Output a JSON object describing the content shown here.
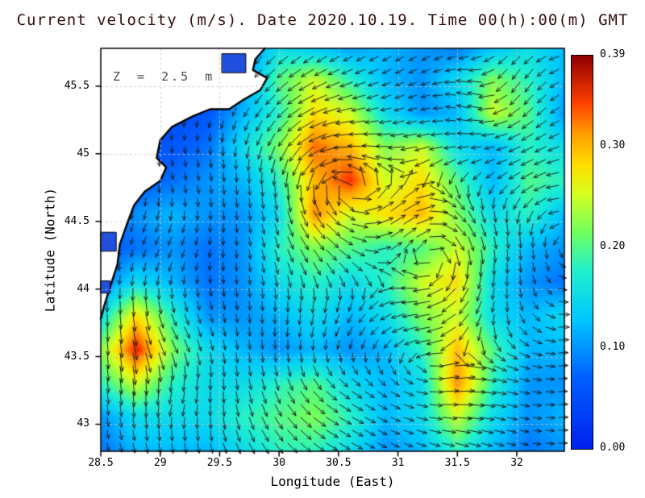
{
  "title": "Current velocity (m/s). Date 2020.10.19. Time 00(h):00(m) GMT",
  "annotation": "Z = 2.5 m",
  "colors": {
    "title": "#33100e",
    "annotation": "#4d4d4d",
    "text": "#000000",
    "coast": "#000000",
    "land": "#ffffff",
    "lake": "#2050dd",
    "arrow": "#101010",
    "gridline": "#c8c8c8"
  },
  "axes": {
    "xlabel": "Longitude (East)",
    "ylabel": "Latitude (North)",
    "xlim": [
      28.5,
      32.4
    ],
    "ylim": [
      42.8,
      45.78
    ],
    "x_ticks": [
      28.5,
      29,
      29.5,
      30,
      30.5,
      31,
      31.5,
      32
    ],
    "x_tick_labels": [
      "28.5",
      "29",
      "29.5",
      "30",
      "30.5",
      "31",
      "31.5",
      "32"
    ],
    "y_ticks": [
      43,
      43.5,
      44,
      44.5,
      45,
      45.5
    ],
    "y_tick_labels": [
      "43",
      "43.5",
      "44",
      "44.5",
      "45",
      "45.5"
    ]
  },
  "colorbar": {
    "min": 0.0,
    "max": 0.39,
    "tick_values": [
      0.0,
      0.1,
      0.2,
      0.3,
      0.39
    ],
    "tick_labels": [
      "0.00",
      "0.10",
      "0.20",
      "0.30",
      "0.39"
    ],
    "stops": [
      [
        0.0,
        "#0020ee"
      ],
      [
        0.18,
        "#0060ff"
      ],
      [
        0.33,
        "#00c8ff"
      ],
      [
        0.45,
        "#20f0d0"
      ],
      [
        0.55,
        "#70ff60"
      ],
      [
        0.65,
        "#d8ff20"
      ],
      [
        0.72,
        "#ffe000"
      ],
      [
        0.8,
        "#ffa000"
      ],
      [
        0.88,
        "#ff4000"
      ],
      [
        1.0,
        "#900000"
      ]
    ]
  },
  "chart_data": {
    "type": "heatmap",
    "overlay": "quiver",
    "units": "m/s",
    "title": "Current velocity (m/s). Date 2020.10.19. Time 00(h):00(m) GMT",
    "depth_m": 2.5,
    "lons": [
      28.5,
      28.8,
      29.1,
      29.4,
      29.7,
      30.0,
      30.3,
      30.6,
      30.9,
      31.2,
      31.5,
      31.8,
      32.1,
      32.4
    ],
    "lats": [
      42.8,
      43.05,
      43.3,
      43.55,
      43.8,
      44.05,
      44.3,
      44.55,
      44.8,
      45.05,
      45.3,
      45.55,
      45.8
    ],
    "speed": [
      [
        0.08,
        0.12,
        0.12,
        0.12,
        0.15,
        0.18,
        0.18,
        0.15,
        0.1,
        0.12,
        0.18,
        0.12,
        0.08,
        0.1
      ],
      [
        0.1,
        0.15,
        0.15,
        0.15,
        0.18,
        0.2,
        0.22,
        0.18,
        0.12,
        0.15,
        0.25,
        0.15,
        0.1,
        0.12
      ],
      [
        0.18,
        0.25,
        0.18,
        0.15,
        0.15,
        0.18,
        0.2,
        0.15,
        0.12,
        0.15,
        0.32,
        0.18,
        0.1,
        0.1
      ],
      [
        0.22,
        0.36,
        0.22,
        0.15,
        0.12,
        0.1,
        0.12,
        0.1,
        0.12,
        0.18,
        0.3,
        0.2,
        0.12,
        0.12
      ],
      [
        0.15,
        0.28,
        0.18,
        0.1,
        0.1,
        0.12,
        0.15,
        0.12,
        0.15,
        0.22,
        0.25,
        0.15,
        0.12,
        0.15
      ],
      [
        0.08,
        0.15,
        0.12,
        0.08,
        0.1,
        0.15,
        0.18,
        0.15,
        0.18,
        0.25,
        0.28,
        0.15,
        0.1,
        0.08
      ],
      [
        0.06,
        0.08,
        0.1,
        0.08,
        0.1,
        0.18,
        0.22,
        0.2,
        0.18,
        0.2,
        0.25,
        0.18,
        0.12,
        0.1
      ],
      [
        0.06,
        0.1,
        0.12,
        0.1,
        0.1,
        0.15,
        0.32,
        0.25,
        0.28,
        0.3,
        0.22,
        0.15,
        0.18,
        0.12
      ],
      [
        0.05,
        0.06,
        0.08,
        0.1,
        0.12,
        0.18,
        0.3,
        0.35,
        0.25,
        0.28,
        0.2,
        0.12,
        0.2,
        0.18
      ],
      [
        0.05,
        0.05,
        0.06,
        0.08,
        0.15,
        0.22,
        0.33,
        0.3,
        0.22,
        0.25,
        0.15,
        0.12,
        0.18,
        0.15
      ],
      [
        0.05,
        0.05,
        0.05,
        0.06,
        0.12,
        0.18,
        0.28,
        0.25,
        0.15,
        0.1,
        0.12,
        0.25,
        0.2,
        0.1
      ],
      [
        0.05,
        0.05,
        0.05,
        0.05,
        0.1,
        0.2,
        0.25,
        0.18,
        0.12,
        0.1,
        0.15,
        0.22,
        0.18,
        0.12
      ],
      [
        0.05,
        0.05,
        0.05,
        0.05,
        0.08,
        0.15,
        0.12,
        0.1,
        0.12,
        0.1,
        0.08,
        0.12,
        0.15,
        0.12
      ]
    ],
    "flow": {
      "background": [
        -0.03,
        -0.04
      ],
      "vortices": [
        {
          "lon": 32.2,
          "lat": 44.4,
          "r": 2.6,
          "s": 1.1
        },
        {
          "lon": 30.3,
          "lat": 43.45,
          "r": 0.55,
          "s": 0.9
        },
        {
          "lon": 30.25,
          "lat": 44.85,
          "r": 0.7,
          "s": 1.2
        },
        {
          "lon": 31.45,
          "lat": 44.25,
          "r": 0.5,
          "s": -0.85
        },
        {
          "lon": 31.9,
          "lat": 45.35,
          "r": 0.45,
          "s": -0.7
        },
        {
          "lon": 29.35,
          "lat": 43.5,
          "r": 0.45,
          "s": -0.35
        },
        {
          "lon": 31.05,
          "lat": 43.35,
          "r": 0.5,
          "s": 0.7
        },
        {
          "lon": 29.4,
          "lat": 44.6,
          "r": 0.5,
          "s": -0.5
        }
      ]
    },
    "map": {
      "land": [
        [
          29.88,
          45.78
        ],
        [
          29.8,
          45.7
        ],
        [
          29.78,
          45.62
        ],
        [
          29.9,
          45.56
        ],
        [
          29.84,
          45.47
        ],
        [
          29.7,
          45.4
        ],
        [
          29.58,
          45.33
        ],
        [
          29.42,
          45.33
        ],
        [
          29.28,
          45.28
        ],
        [
          29.1,
          45.2
        ],
        [
          29.0,
          45.1
        ],
        [
          28.97,
          44.97
        ],
        [
          29.05,
          44.9
        ],
        [
          29.0,
          44.8
        ],
        [
          28.87,
          44.72
        ],
        [
          28.78,
          44.62
        ],
        [
          28.72,
          44.48
        ],
        [
          28.66,
          44.33
        ],
        [
          28.64,
          44.18
        ],
        [
          28.58,
          44.02
        ],
        [
          28.53,
          43.88
        ],
        [
          28.5,
          43.78
        ],
        [
          28.5,
          45.78
        ]
      ],
      "lakes": [
        [
          29.52,
          45.6,
          29.72,
          45.74
        ],
        [
          28.5,
          44.28,
          28.63,
          44.42
        ],
        [
          28.5,
          43.97,
          28.58,
          44.06
        ]
      ]
    }
  }
}
